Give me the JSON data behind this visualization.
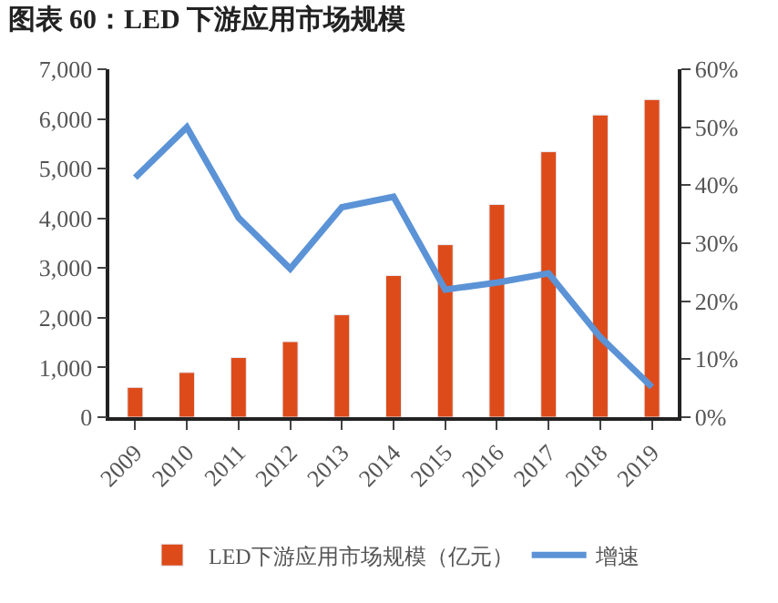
{
  "chart_data": {
    "type": "bar",
    "title": "图表 60：LED 下游应用市场规模",
    "categories": [
      "2009",
      "2010",
      "2011",
      "2012",
      "2013",
      "2014",
      "2015",
      "2016",
      "2017",
      "2018",
      "2019"
    ],
    "series": [
      {
        "name": "LED下游应用市场规模（亿元）",
        "color": "#dd4b1a",
        "values": [
          600,
          900,
          1200,
          1520,
          2060,
          2850,
          3470,
          4280,
          5340,
          6080,
          6390
        ]
      },
      {
        "name": "增速",
        "type": "line",
        "axis": "y2",
        "color": "#5b93d6",
        "values": [
          41.3,
          50,
          34.4,
          25.6,
          36.2,
          38,
          22,
          23.2,
          24.8,
          13.8,
          5.2
        ]
      }
    ],
    "ylim": [
      0,
      7000
    ],
    "yticks": [
      0,
      {
        "value": 1000,
        "label": "1,000"
      },
      {
        "value": 2000,
        "label": "2,000"
      },
      {
        "value": 3000,
        "label": "3,000"
      },
      {
        "value": 4000,
        "label": "4,000"
      },
      {
        "value": 5000,
        "label": "5,000"
      },
      {
        "value": 6000,
        "label": "6,000"
      },
      {
        "value": 7000,
        "label": "7,000"
      }
    ],
    "y2lim": [
      0,
      60
    ],
    "y2ticks": [
      {
        "value": 0,
        "label": "0%"
      },
      {
        "value": 10,
        "label": "10%"
      },
      {
        "value": 20,
        "label": "20%"
      },
      {
        "value": 30,
        "label": "30%"
      },
      {
        "value": 40,
        "label": "40%"
      },
      {
        "value": 50,
        "label": "50%"
      },
      {
        "value": 60,
        "label": "60%"
      }
    ],
    "legend": "bottom",
    "marker": "none",
    "line_style": "solid"
  }
}
